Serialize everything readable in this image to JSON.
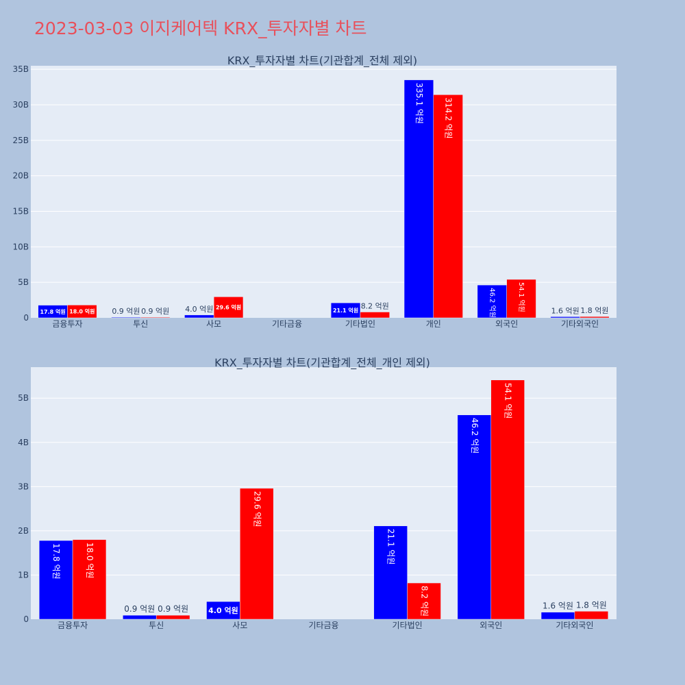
{
  "page": {
    "title": "2023-03-03 이지케어텍 KRX_투자자별 차트"
  },
  "colors": {
    "background": "#b0c4de",
    "plot_background": "#e5ecf6",
    "title": "#e8505b",
    "series_a": "#0000ff",
    "series_b": "#ff0000",
    "axis_text": "#2a3f5f"
  },
  "chart_data": [
    {
      "type": "bar",
      "title": "KRX_투자자별 차트(기관합계_전체 제외)",
      "categories": [
        "금융투자",
        "투신",
        "사모",
        "기타금융",
        "기타법인",
        "개인",
        "외국인",
        "기타외국인"
      ],
      "series": [
        {
          "color": "#0000ff",
          "values": [
            1780000000,
            90000000,
            400000000,
            null,
            2110000000,
            33510000000,
            4620000000,
            160000000
          ],
          "labels": [
            "17.8 억원",
            "0.9 억원",
            "4.0 억원",
            "",
            "21.1 억원",
            "335.1 억원",
            "46.2 억원",
            "1.6 억원"
          ]
        },
        {
          "color": "#ff0000",
          "values": [
            1800000000,
            90000000,
            2960000000,
            null,
            820000000,
            31420000000,
            5410000000,
            180000000
          ],
          "labels": [
            "18.0 억원",
            "0.9 억원",
            "29.6 억원",
            "",
            "8.2 억원",
            "314.2 억원",
            "54.1 억원",
            "1.8 억원"
          ]
        }
      ],
      "ylim": [
        0,
        35500000000
      ],
      "yticks": [
        0,
        5000000000,
        10000000000,
        15000000000,
        20000000000,
        25000000000,
        30000000000,
        35000000000
      ],
      "ytick_labels": [
        "0",
        "5B",
        "10B",
        "15B",
        "20B",
        "25B",
        "30B",
        "35B"
      ],
      "grid": true,
      "xlabel": "",
      "ylabel": ""
    },
    {
      "type": "bar",
      "title": "KRX_투자자별 차트(기관합계_전체_개인 제외)",
      "categories": [
        "금융투자",
        "투신",
        "사모",
        "기타금융",
        "기타법인",
        "외국인",
        "기타외국인"
      ],
      "series": [
        {
          "color": "#0000ff",
          "values": [
            1780000000,
            90000000,
            400000000,
            null,
            2110000000,
            4620000000,
            160000000
          ],
          "labels": [
            "17.8 억원",
            "0.9 억원",
            "4.0 억원",
            "",
            "21.1 억원",
            "46.2 억원",
            "1.6 억원"
          ]
        },
        {
          "color": "#ff0000",
          "values": [
            1800000000,
            90000000,
            2960000000,
            null,
            820000000,
            5410000000,
            180000000
          ],
          "labels": [
            "18.0 억원",
            "0.9 억원",
            "29.6 억원",
            "",
            "8.2 억원",
            "54.1 억원",
            "1.8 억원"
          ]
        }
      ],
      "ylim": [
        0,
        5700000000
      ],
      "yticks": [
        0,
        1000000000,
        2000000000,
        3000000000,
        4000000000,
        5000000000
      ],
      "ytick_labels": [
        "0",
        "1B",
        "2B",
        "3B",
        "4B",
        "5B"
      ],
      "grid": true,
      "xlabel": "",
      "ylabel": ""
    }
  ]
}
